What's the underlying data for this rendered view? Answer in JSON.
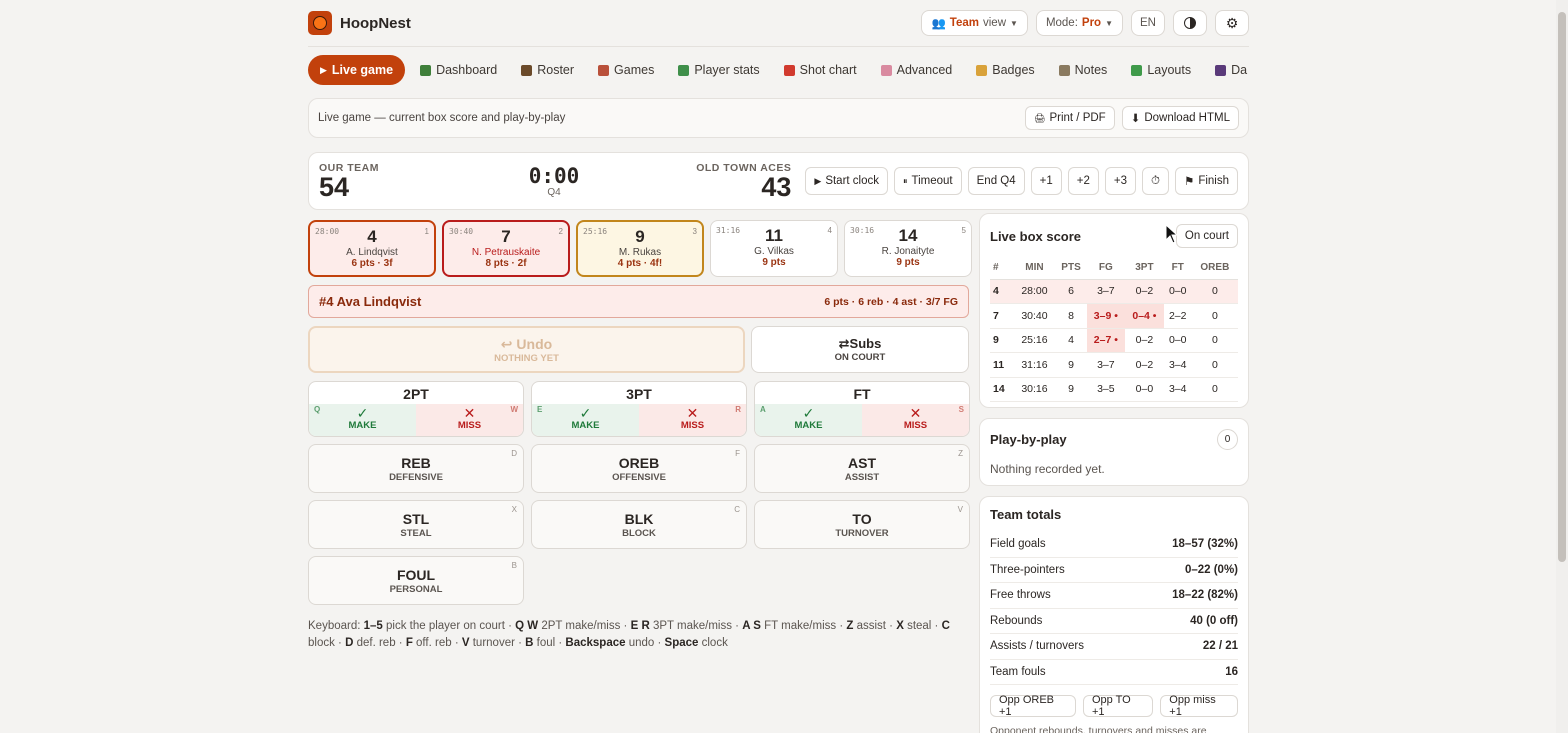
{
  "app": {
    "title": "HoopNest"
  },
  "top": {
    "view_team": "Team",
    "view_label": "view",
    "mode_label": "Mode:",
    "mode_value": "Pro",
    "lang": "EN",
    "theme_icon": "contrast-icon",
    "settings_icon": "gear-icon"
  },
  "nav": [
    {
      "label": "Live game",
      "icon": "play-icon",
      "color": "#ffffff"
    },
    {
      "label": "Dashboard",
      "icon": "bar-chart-icon",
      "color": "#3f7f3a"
    },
    {
      "label": "Roster",
      "icon": "people-icon",
      "color": "#6b4a2a"
    },
    {
      "label": "Games",
      "icon": "calendar-icon",
      "color": "#b9503a"
    },
    {
      "label": "Player stats",
      "icon": "person-icon",
      "color": "#3f8f4a"
    },
    {
      "label": "Shot chart",
      "icon": "target-icon",
      "color": "#d13a2e"
    },
    {
      "label": "Advanced",
      "icon": "brain-icon",
      "color": "#d98aa0"
    },
    {
      "label": "Badges",
      "icon": "medal-icon",
      "color": "#d9a23a"
    },
    {
      "label": "Notes",
      "icon": "memo-icon",
      "color": "#8a7a60"
    },
    {
      "label": "Layouts",
      "icon": "clover-icon",
      "color": "#3f9a4a"
    },
    {
      "label": "Da",
      "icon": "floppy-icon",
      "color": "#5a3a7a"
    }
  ],
  "subhead": {
    "text": "Live game — current box score and play-by-play",
    "print": "Print / PDF",
    "download": "Download HTML"
  },
  "score": {
    "our_label": "OUR TEAM",
    "our_pts": "54",
    "clock": "0:00",
    "quarter": "Q4",
    "opp_label": "OLD TOWN ACES",
    "opp_pts": "43",
    "start": "Start clock",
    "timeout": "Timeout",
    "end": "End Q4",
    "p1": "+1",
    "p2": "+2",
    "p3": "+3",
    "finish": "Finish"
  },
  "players": [
    {
      "min": "28:00",
      "slot": "1",
      "num": "4",
      "name": "A. Lindqvist",
      "stats": "6 pts · 3f",
      "state": "sel"
    },
    {
      "min": "30:40",
      "slot": "2",
      "num": "7",
      "name": "N. Petrauskaite",
      "stats": "8 pts · 2f",
      "state": "warn"
    },
    {
      "min": "25:16",
      "slot": "3",
      "num": "9",
      "name": "M. Rukas",
      "stats": "4 pts · 4f!",
      "state": "hot"
    },
    {
      "min": "31:16",
      "slot": "4",
      "num": "11",
      "name": "G. Vilkas",
      "stats": "9 pts",
      "state": ""
    },
    {
      "min": "30:16",
      "slot": "5",
      "num": "14",
      "name": "R. Jonaityte",
      "stats": "9 pts",
      "state": ""
    }
  ],
  "active": {
    "name": "#4 Ava Lindqvist",
    "stats": "6 pts · 6 reb · 4 ast · 3/7 FG"
  },
  "undo": {
    "label": "Undo",
    "sub": "NOTHING YET"
  },
  "subs": {
    "label": "Subs",
    "sub": "ON COURT"
  },
  "shots": [
    {
      "title": "2PT",
      "make_key": "Q",
      "miss_key": "W"
    },
    {
      "title": "3PT",
      "make_key": "E",
      "miss_key": "R"
    },
    {
      "title": "FT",
      "make_key": "A",
      "miss_key": "S"
    }
  ],
  "make_label": "MAKE",
  "miss_label": "MISS",
  "actions": [
    {
      "title": "REB",
      "sub": "DEFENSIVE",
      "key": "D"
    },
    {
      "title": "OREB",
      "sub": "OFFENSIVE",
      "key": "F"
    },
    {
      "title": "AST",
      "sub": "ASSIST",
      "key": "Z"
    },
    {
      "title": "STL",
      "sub": "STEAL",
      "key": "X"
    },
    {
      "title": "BLK",
      "sub": "BLOCK",
      "key": "C"
    },
    {
      "title": "TO",
      "sub": "TURNOVER",
      "key": "V"
    },
    {
      "title": "FOUL",
      "sub": "PERSONAL",
      "key": "B"
    }
  ],
  "keyboard": [
    {
      "t": "Keyboard: ",
      "b": false
    },
    {
      "t": "1–5",
      "b": true
    },
    {
      "t": " pick the player on court · ",
      "b": false
    },
    {
      "t": "Q W",
      "b": true
    },
    {
      "t": " 2PT make/miss · ",
      "b": false
    },
    {
      "t": "E R",
      "b": true
    },
    {
      "t": " 3PT make/miss · ",
      "b": false
    },
    {
      "t": "A S",
      "b": true
    },
    {
      "t": " FT make/miss · ",
      "b": false
    },
    {
      "t": "Z",
      "b": true
    },
    {
      "t": " assist · ",
      "b": false
    },
    {
      "t": "X",
      "b": true
    },
    {
      "t": " steal · ",
      "b": false
    },
    {
      "t": "C",
      "b": true
    },
    {
      "t": " block · ",
      "b": false
    },
    {
      "t": "D",
      "b": true
    },
    {
      "t": " def. reb · ",
      "b": false
    },
    {
      "t": "F",
      "b": true
    },
    {
      "t": " off. reb · ",
      "b": false
    },
    {
      "t": "V",
      "b": true
    },
    {
      "t": " turnover · ",
      "b": false
    },
    {
      "t": "B",
      "b": true
    },
    {
      "t": " foul · ",
      "b": false
    },
    {
      "t": "Backspace",
      "b": true
    },
    {
      "t": " undo · ",
      "b": false
    },
    {
      "t": "Space",
      "b": true
    },
    {
      "t": " clock",
      "b": false
    }
  ],
  "box": {
    "title": "Live box score",
    "toggle": "On court",
    "headers": [
      "#",
      "MIN",
      "PTS",
      "FG",
      "3PT",
      "FT",
      "OREB"
    ],
    "rows": [
      {
        "cells": [
          "4",
          "28:00",
          "6",
          "3–7",
          "0–2",
          "0–0",
          "0"
        ],
        "hl": true,
        "bad": []
      },
      {
        "cells": [
          "7",
          "30:40",
          "8",
          "3–9 •",
          "0–4 •",
          "2–2",
          "0"
        ],
        "hl": false,
        "bad": [
          3,
          4
        ]
      },
      {
        "cells": [
          "9",
          "25:16",
          "4",
          "2–7 •",
          "0–2",
          "0–0",
          "0"
        ],
        "hl": false,
        "bad": [
          3
        ]
      },
      {
        "cells": [
          "11",
          "31:16",
          "9",
          "3–7",
          "0–2",
          "3–4",
          "0"
        ],
        "hl": false,
        "bad": []
      },
      {
        "cells": [
          "14",
          "30:16",
          "9",
          "3–5",
          "0–0",
          "3–4",
          "0"
        ],
        "hl": false,
        "bad": []
      }
    ]
  },
  "pbp": {
    "title": "Play-by-play",
    "count": "0",
    "empty": "Nothing recorded yet."
  },
  "totals": {
    "title": "Team totals",
    "rows": [
      {
        "k": "Field goals",
        "v": "18–57 (32%)"
      },
      {
        "k": "Three-pointers",
        "v": "0–22 (0%)"
      },
      {
        "k": "Free throws",
        "v": "18–22 (82%)"
      },
      {
        "k": "Rebounds",
        "v": "40 (0 off)"
      },
      {
        "k": "Assists / turnovers",
        "v": "22 / 21"
      },
      {
        "k": "Team fouls",
        "v": "16"
      }
    ],
    "opp_oreb": "Opp OREB +1",
    "opp_to": "Opp TO +1",
    "opp_miss": "Opp miss +1",
    "note": "Opponent rebounds, turnovers and misses are optional"
  }
}
